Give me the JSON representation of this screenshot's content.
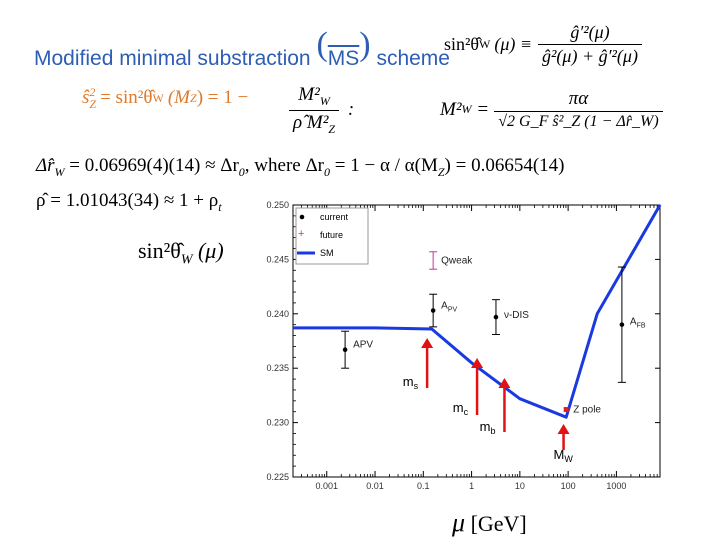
{
  "header": {
    "title_left": "Modified minimal substraction",
    "title_ms": "MS",
    "title_right": "scheme",
    "defn_lhs": "sin²θ̂",
    "defn_lhs_sub": "W",
    "defn_lhs_arg": "(μ) ≡",
    "defn_num": "ĝ′²(μ)",
    "defn_den": "ĝ²(μ) + ĝ′²(μ)"
  },
  "eq2": {
    "lhs": "ŝ",
    "lhs_sub": "Z",
    "lhs_sup": "2",
    "mid": "= sin²θ̂",
    "mid_sub": "W",
    "mid_arg": "(M",
    "mid_arg_sub": "Z",
    "mid_arg_end": ") = 1 −",
    "frac_num": "M²",
    "frac_num_sub": "W",
    "frac_den": "ρ̂ M²",
    "frac_den_sub": "Z",
    "colon": ":",
    "right_lhs": "M²",
    "right_lhs_sub": "W",
    "right_eq": "=",
    "right_num": "πα",
    "right_den": "√2 G_F ŝ²_Z (1 − Δr̂_W)"
  },
  "eq3": {
    "text_left": "Δr̂",
    "text_left_sub": "W",
    "text_mid": "= 0.06969(4)(14) ≈ Δr",
    "text_mid_sub": "0",
    "text_where": ",   where   Δr",
    "text_where_sub": "0",
    "text_right": "= 1 − α / α(M",
    "text_right_sub": "Z",
    "text_end": ") = 0.06654(14)"
  },
  "eq4": {
    "text": "ρ̂ = 1.01043(34) ≈ 1 + ρ",
    "text_sub": "t"
  },
  "ylabel": {
    "text": "sin²θ̂",
    "sub": "W",
    "arg": "(μ)"
  },
  "xlabel": {
    "mu": "μ",
    "unit": "[GeV]"
  },
  "legend": {
    "current": "current",
    "future": "future",
    "sm": "SM"
  },
  "arrows": [
    {
      "label": "m",
      "sub": "s",
      "mu": 0.12
    },
    {
      "label": "m",
      "sub": "c",
      "mu": 1.3
    },
    {
      "label": "m",
      "sub": "b",
      "mu": 4.8
    },
    {
      "label": "M",
      "sub": "W",
      "mu": 80.4
    }
  ],
  "colors": {
    "title_blue": "#2e5db5",
    "orange": "#e07a2a",
    "sm_curve": "#1a39e0",
    "arrow_red": "#e01212",
    "future_magenta": "#d0309a",
    "zpole_red": "#e02020"
  },
  "chart_data": {
    "type": "line",
    "x_scale": "log",
    "xlim": [
      0.0002,
      8000
    ],
    "ylim": [
      0.225,
      0.25
    ],
    "x_ticks": [
      0.001,
      0.01,
      0.1,
      1,
      10,
      100,
      1000
    ],
    "x_tick_labels": [
      "0.001",
      "0.01",
      "0.1",
      "1",
      "10",
      "100",
      "1000"
    ],
    "y_ticks": [
      0.225,
      0.23,
      0.235,
      0.24,
      0.245,
      0.25
    ],
    "y_tick_labels": [
      "0.225",
      "0.230",
      "0.235",
      "0.240",
      "0.245",
      "0.250"
    ],
    "series": [
      {
        "name": "SM",
        "x": [
          0.0002,
          0.001,
          0.01,
          0.15,
          1.0,
          10.0,
          91.2,
          400.0,
          8000.0
        ],
        "y": [
          0.2387,
          0.2387,
          0.2387,
          0.2386,
          0.2355,
          0.2322,
          0.2305,
          0.24,
          0.2505
        ]
      }
    ],
    "points": [
      {
        "label": "APV",
        "mu": 0.0024,
        "value": 0.2367,
        "err": 0.0017,
        "kind": "current"
      },
      {
        "label": "A_PV",
        "mu": 0.16,
        "value": 0.2403,
        "err": 0.0015,
        "kind": "current"
      },
      {
        "label": "ν-DIS",
        "mu": 3.2,
        "value": 0.2397,
        "err": 0.0016,
        "kind": "current"
      },
      {
        "label": "Z pole",
        "mu": 91.2,
        "value": 0.2312,
        "err": 0.0001,
        "kind": "zpole"
      },
      {
        "label": "A_FB",
        "mu": 1300,
        "value": 0.239,
        "err": 0.0053,
        "kind": "current"
      },
      {
        "label": "Qweak",
        "mu": 0.16,
        "value": 0.2449,
        "err": 0.0008,
        "kind": "future"
      }
    ],
    "legend_position": "top-left"
  }
}
